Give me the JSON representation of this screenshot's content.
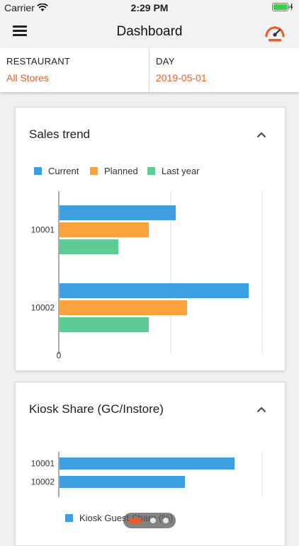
{
  "status_bar": {
    "carrier": "Carrier",
    "time": "2:29 PM"
  },
  "nav": {
    "title": "Dashboard"
  },
  "filters": {
    "restaurant": {
      "label": "RESTAURANT",
      "value": "All Stores"
    },
    "day": {
      "label": "DAY",
      "value": "2019-05-01"
    }
  },
  "colors": {
    "accent": "#ee5a24",
    "current": "#3d9ee0",
    "planned": "#fba13d",
    "last_year": "#5ccb94",
    "kiosk": "#3d9ee0"
  },
  "sales_card": {
    "title": "Sales trend",
    "legend": [
      "Current",
      "Planned",
      "Last year"
    ]
  },
  "kiosk_card": {
    "title": "Kiosk Share (GC/Instore)",
    "legend": [
      "Kiosk Guest Share (%)"
    ]
  },
  "chart_data": [
    {
      "type": "bar",
      "orientation": "horizontal",
      "title": "Sales trend",
      "categories": [
        "10001",
        "10002"
      ],
      "series": [
        {
          "name": "Current",
          "values": [
            165,
            268
          ]
        },
        {
          "name": "Planned",
          "values": [
            127,
            181
          ]
        },
        {
          "name": "Last year",
          "values": [
            84,
            127
          ]
        }
      ],
      "x_tick_labels": [
        "0"
      ],
      "xlim": [
        0,
        290
      ],
      "grid": true,
      "legend_position": "top"
    },
    {
      "type": "bar",
      "orientation": "horizontal",
      "title": "Kiosk Share (GC/Instore)",
      "categories": [
        "10001",
        "10002"
      ],
      "series": [
        {
          "name": "Kiosk Guest Share (%)",
          "values": [
            248,
            178
          ]
        }
      ],
      "xlim": [
        0,
        290
      ],
      "grid": true,
      "legend_position": "bottom"
    }
  ]
}
